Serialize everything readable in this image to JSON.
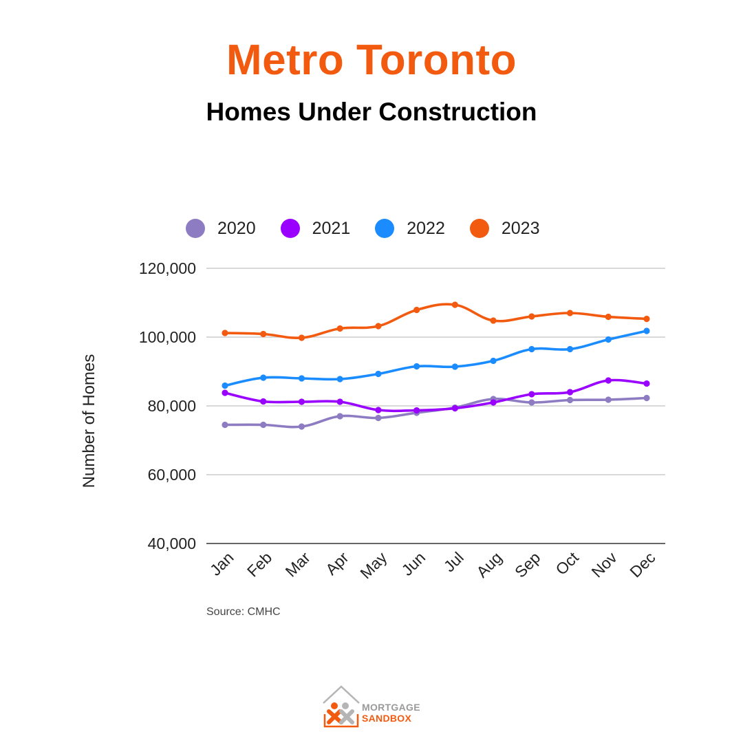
{
  "header": {
    "title": "Metro Toronto",
    "subtitle": "Homes Under Construction"
  },
  "footer": {
    "source": "Source: CMHC"
  },
  "logo": {
    "line1": "MORTGAGE",
    "line2": "SANDBOX",
    "color_grey": "#9a9a9a",
    "color_orange": "#f25a0f"
  },
  "chart_data": {
    "type": "line",
    "title": "",
    "xlabel": "",
    "ylabel": "Number of Homes",
    "categories": [
      "Jan",
      "Feb",
      "Mar",
      "Apr",
      "May",
      "Jun",
      "Jul",
      "Aug",
      "Sep",
      "Oct",
      "Nov",
      "Dec"
    ],
    "ylim": [
      40000,
      120000
    ],
    "yticks": [
      40000,
      60000,
      80000,
      100000,
      120000
    ],
    "ytick_labels": [
      "40,000",
      "60,000",
      "80,000",
      "100,000",
      "120,000"
    ],
    "grid": true,
    "legend_position": "top",
    "series": [
      {
        "name": "2020",
        "color": "#8e7cc3",
        "values": [
          74500,
          74500,
          74000,
          77000,
          76500,
          78000,
          79500,
          82000,
          81000,
          81700,
          81800,
          82300
        ]
      },
      {
        "name": "2021",
        "color": "#9900ff",
        "values": [
          83800,
          81300,
          81200,
          81200,
          78800,
          78700,
          79300,
          81000,
          83400,
          84000,
          87400,
          86500
        ]
      },
      {
        "name": "2022",
        "color": "#1a8cff",
        "values": [
          85900,
          88200,
          88000,
          87800,
          89300,
          91500,
          91400,
          93100,
          96500,
          96500,
          99300,
          101800
        ]
      },
      {
        "name": "2023",
        "color": "#f25a0f",
        "values": [
          101200,
          100900,
          99800,
          102500,
          103200,
          107900,
          109400,
          104800,
          106000,
          107000,
          105900,
          105300
        ]
      }
    ]
  }
}
